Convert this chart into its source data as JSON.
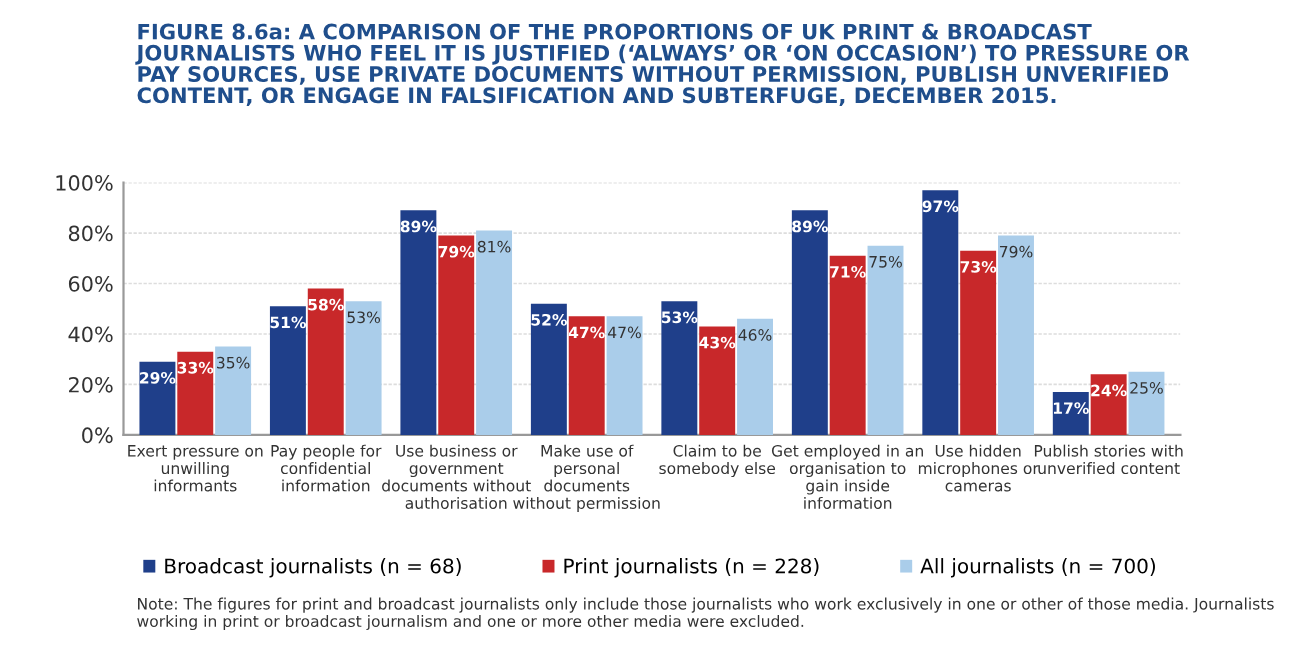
{
  "chart_data": {
    "type": "bar",
    "title": "FIGURE 8.6a: A COMPARISON OF THE PROPORTIONS OF UK PRINT & BROADCAST\nJOURNALISTS WHO FEEL IT IS JUSTIFIED (‘ALWAYS’ OR ‘ON OCCASION’) TO PRESSURE OR\nPAY SOURCES, USE PRIVATE DOCUMENTS WITHOUT PERMISSION, PUBLISH UNVERIFIED\nCONTENT, OR ENGAGE IN FALSIFICATION AND SUBTERFUGE, DECEMBER 2015.",
    "categories": [
      "Exert pressure on\nunwilling\ninformants",
      "Pay people for\nconfidential\ninformation",
      "Use business or\ngovernment\ndocuments without\nauthorisation",
      "Make use of\npersonal\ndocuments\nwithout permission",
      "Claim to be\nsomebody else",
      "Get employed in an\norganisation to\ngain inside\ninformation",
      "Use hidden\nmicrophones or\ncameras",
      "Publish stories with\nunverified content"
    ],
    "series": [
      {
        "name": "Broadcast journalists (n = 68)",
        "color": "#1f3f8a",
        "values": [
          29,
          51,
          89,
          52,
          53,
          89,
          97,
          17
        ],
        "value_labels": [
          "29%",
          "51%",
          "89%",
          "52%",
          "53%",
          "89%",
          "97%",
          "17%"
        ]
      },
      {
        "name": "Print journalists (n = 228)",
        "color": "#c8282a",
        "values": [
          33,
          58,
          79,
          47,
          43,
          71,
          73,
          24
        ],
        "value_labels": [
          "33%",
          "58%",
          "79%",
          "47%",
          "43%",
          "71%",
          "73%",
          "24%"
        ]
      },
      {
        "name": "All journalists (n = 700)",
        "color": "#aacdea",
        "values": [
          35,
          53,
          81,
          47,
          46,
          75,
          79,
          25
        ],
        "value_labels": [
          "35%",
          "53%",
          "81%",
          "47%",
          "46%",
          "75%",
          "79%",
          "25%"
        ]
      }
    ],
    "ylim": [
      0,
      100
    ],
    "yticks": [
      {
        "value": 0,
        "label": "0%"
      },
      {
        "value": 20,
        "label": "20%"
      },
      {
        "value": 40,
        "label": "40%"
      },
      {
        "value": 60,
        "label": "60%"
      },
      {
        "value": 80,
        "label": "80%"
      },
      {
        "value": 100,
        "label": "100%"
      }
    ],
    "grid": "y",
    "legend": "bottom",
    "annotations": [
      "Note: The figures for print and broadcast journalists only include those journalists who work exclusively in one or other of those media. Journalists working in print or broadcast journalism and one or more other media were excluded."
    ]
  }
}
